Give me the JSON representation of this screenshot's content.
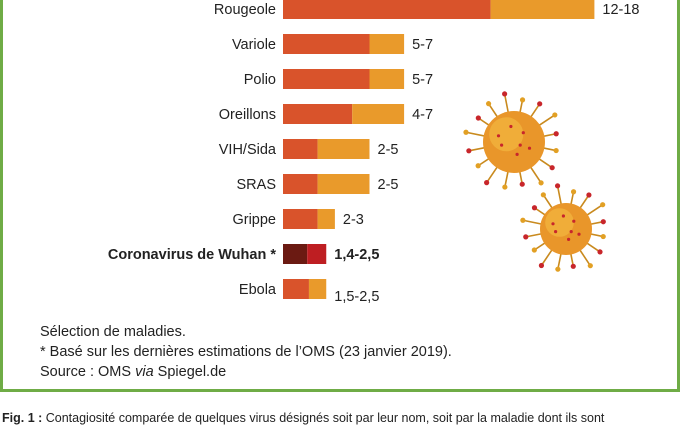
{
  "chart_data": {
    "type": "bar",
    "orientation": "horizontal",
    "stacked": true,
    "categories": [
      "Rougeole",
      "Variole",
      "Polio",
      "Oreillons",
      "VIH/Sida",
      "SRAS",
      "Grippe",
      "Coronavirus de Wuhan *",
      "Ebola"
    ],
    "range_labels": [
      "12-18",
      "5-7",
      "5-7",
      "4-7",
      "2-5",
      "2-5",
      "2-3",
      "1,4-2,5",
      "1,5-2,5"
    ],
    "low": [
      12,
      5,
      5,
      4,
      2,
      2,
      2,
      1.4,
      1.5
    ],
    "high": [
      18,
      7,
      7,
      7,
      5,
      5,
      3,
      2.5,
      2.5
    ],
    "highlight_index": 7,
    "xlim": [
      0,
      18
    ],
    "colors": {
      "low": "#d9532b",
      "high": "#e99a2b",
      "highlight_low": "#6b1a12",
      "highlight_high": "#be1e22",
      "frame": "#6fac46"
    }
  },
  "decorations": {
    "virus_icons": 2
  },
  "notes": {
    "line1": "Sélection de maladies.",
    "line2": "* Basé sur les dernières estimations de l’OMS (23 janvier 2019).",
    "line3_prefix": "Source : OMS ",
    "line3_italic": "via",
    "line3_suffix": " Spiegel.de"
  },
  "caption": {
    "label": "Fig. 1 :",
    "text": " Contagiosité comparée de quelques virus désignés soit par leur nom, soit par la maladie dont ils sont"
  }
}
